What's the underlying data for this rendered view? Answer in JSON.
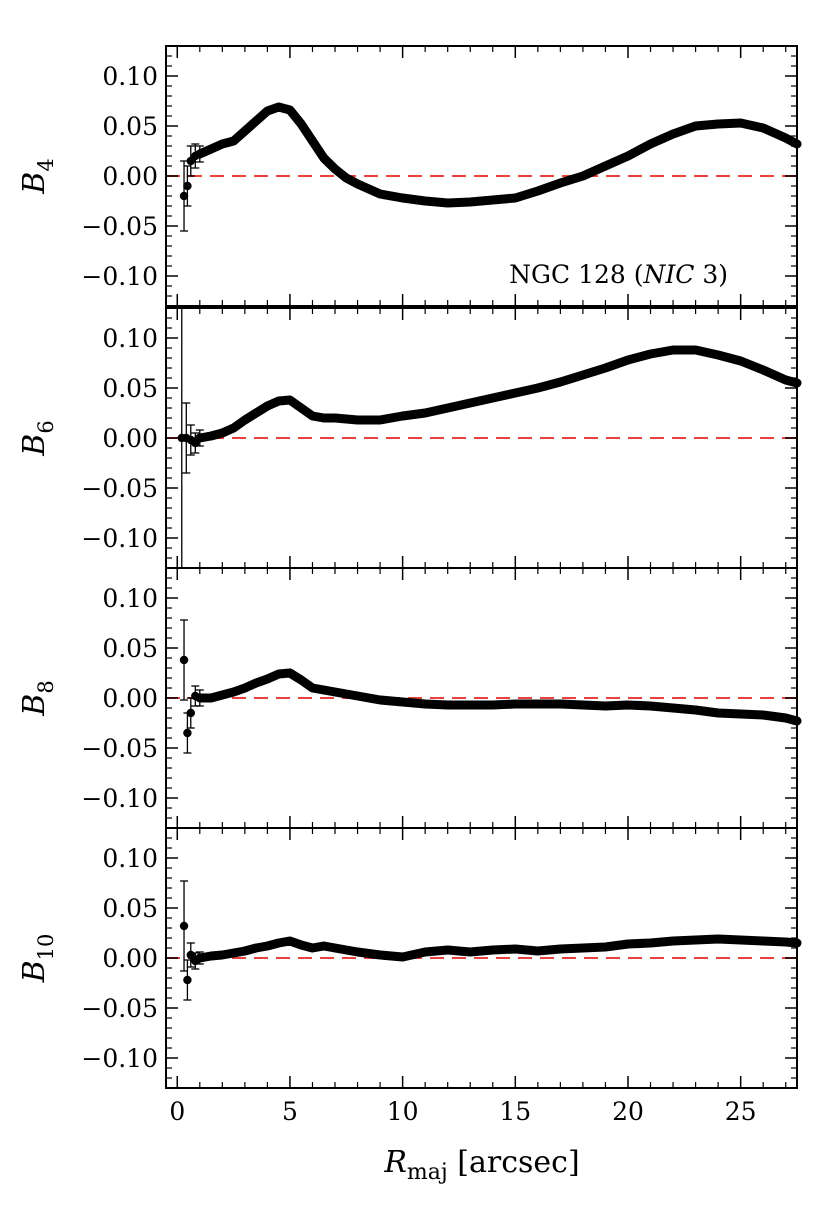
{
  "chart_data": {
    "type": "scatter",
    "annotation": "NGC 128 (NIC 3)",
    "xlabel": {
      "main": "R",
      "sub": "maj",
      "rest": " [arcsec]"
    },
    "xlim": [
      -0.5,
      27.5
    ],
    "x_ticks": [
      0,
      5,
      10,
      15,
      20,
      25
    ],
    "x_tick_labels": [
      "0",
      "5",
      "10",
      "15",
      "20",
      "25"
    ],
    "y_ticks": [
      -0.1,
      -0.05,
      0.0,
      0.05,
      0.1
    ],
    "y_tick_labels": [
      "−0.10",
      "−0.05",
      "0.00",
      "0.05",
      "0.10"
    ],
    "reference_line": {
      "y": 0.0,
      "style": "dashed",
      "color": "#e8423c"
    },
    "marker_color": "#000000",
    "panels": [
      {
        "ylabel": "B",
        "ylabel_sub": "4",
        "ylim": [
          -0.13,
          0.13
        ],
        "errors": [
          {
            "x": 0.3,
            "y": -0.02,
            "err": 0.035
          },
          {
            "x": 0.45,
            "y": -0.01,
            "err": 0.02
          },
          {
            "x": 0.6,
            "y": 0.015,
            "err": 0.015
          },
          {
            "x": 0.8,
            "y": 0.02,
            "err": 0.012
          },
          {
            "x": 1.0,
            "y": 0.022,
            "err": 0.008
          }
        ],
        "points": [
          [
            0.3,
            -0.02
          ],
          [
            0.45,
            -0.01
          ],
          [
            0.6,
            0.015
          ],
          [
            0.8,
            0.02
          ],
          [
            1.0,
            0.022
          ],
          [
            1.5,
            0.027
          ],
          [
            2.0,
            0.032
          ],
          [
            2.5,
            0.035
          ],
          [
            3.0,
            0.045
          ],
          [
            3.5,
            0.055
          ],
          [
            4.0,
            0.065
          ],
          [
            4.5,
            0.069
          ],
          [
            5.0,
            0.066
          ],
          [
            5.5,
            0.052
          ],
          [
            6.0,
            0.035
          ],
          [
            6.5,
            0.018
          ],
          [
            7.0,
            0.007
          ],
          [
            7.5,
            -0.002
          ],
          [
            8.0,
            -0.008
          ],
          [
            9.0,
            -0.018
          ],
          [
            10.0,
            -0.022
          ],
          [
            11.0,
            -0.025
          ],
          [
            12.0,
            -0.027
          ],
          [
            13.0,
            -0.026
          ],
          [
            14.0,
            -0.024
          ],
          [
            15.0,
            -0.022
          ],
          [
            16.0,
            -0.015
          ],
          [
            17.0,
            -0.007
          ],
          [
            18.0,
            0.0
          ],
          [
            19.0,
            0.01
          ],
          [
            20.0,
            0.02
          ],
          [
            21.0,
            0.032
          ],
          [
            22.0,
            0.042
          ],
          [
            23.0,
            0.05
          ],
          [
            24.0,
            0.052
          ],
          [
            25.0,
            0.053
          ],
          [
            26.0,
            0.048
          ],
          [
            27.0,
            0.038
          ],
          [
            27.5,
            0.032
          ]
        ]
      },
      {
        "ylabel": "B",
        "ylabel_sub": "6",
        "ylim": [
          -0.13,
          0.13
        ],
        "errors": [
          {
            "x": 0.2,
            "y": 0.0,
            "err": 0.13
          },
          {
            "x": 0.4,
            "y": 0.0,
            "err": 0.035
          },
          {
            "x": 0.6,
            "y": -0.002,
            "err": 0.015
          },
          {
            "x": 0.8,
            "y": -0.005,
            "err": 0.01
          },
          {
            "x": 1.0,
            "y": 0.0,
            "err": 0.008
          }
        ],
        "points": [
          [
            0.2,
            0.0
          ],
          [
            0.4,
            0.0
          ],
          [
            0.6,
            -0.002
          ],
          [
            0.8,
            -0.005
          ],
          [
            1.0,
            0.0
          ],
          [
            1.5,
            0.002
          ],
          [
            2.0,
            0.005
          ],
          [
            2.5,
            0.01
          ],
          [
            3.0,
            0.018
          ],
          [
            3.5,
            0.025
          ],
          [
            4.0,
            0.032
          ],
          [
            4.5,
            0.037
          ],
          [
            5.0,
            0.038
          ],
          [
            5.5,
            0.03
          ],
          [
            6.0,
            0.022
          ],
          [
            6.5,
            0.02
          ],
          [
            7.0,
            0.02
          ],
          [
            8.0,
            0.018
          ],
          [
            9.0,
            0.018
          ],
          [
            10.0,
            0.022
          ],
          [
            11.0,
            0.025
          ],
          [
            12.0,
            0.03
          ],
          [
            13.0,
            0.035
          ],
          [
            14.0,
            0.04
          ],
          [
            15.0,
            0.045
          ],
          [
            16.0,
            0.05
          ],
          [
            17.0,
            0.056
          ],
          [
            18.0,
            0.063
          ],
          [
            19.0,
            0.07
          ],
          [
            20.0,
            0.078
          ],
          [
            21.0,
            0.084
          ],
          [
            22.0,
            0.088
          ],
          [
            23.0,
            0.088
          ],
          [
            24.0,
            0.083
          ],
          [
            25.0,
            0.077
          ],
          [
            26.0,
            0.068
          ],
          [
            27.0,
            0.058
          ],
          [
            27.5,
            0.055
          ]
        ]
      },
      {
        "ylabel": "B",
        "ylabel_sub": "8",
        "ylim": [
          -0.13,
          0.13
        ],
        "errors": [
          {
            "x": 0.3,
            "y": 0.038,
            "err": 0.04
          },
          {
            "x": 0.45,
            "y": -0.035,
            "err": 0.02
          },
          {
            "x": 0.6,
            "y": -0.015,
            "err": 0.015
          },
          {
            "x": 0.8,
            "y": 0.002,
            "err": 0.01
          },
          {
            "x": 1.0,
            "y": 0.0,
            "err": 0.008
          }
        ],
        "points": [
          [
            0.3,
            0.038
          ],
          [
            0.45,
            -0.035
          ],
          [
            0.6,
            -0.015
          ],
          [
            0.8,
            0.002
          ],
          [
            1.0,
            0.0
          ],
          [
            1.5,
            0.0
          ],
          [
            2.0,
            0.003
          ],
          [
            2.5,
            0.006
          ],
          [
            3.0,
            0.01
          ],
          [
            3.5,
            0.015
          ],
          [
            4.0,
            0.019
          ],
          [
            4.5,
            0.024
          ],
          [
            5.0,
            0.025
          ],
          [
            5.5,
            0.018
          ],
          [
            6.0,
            0.01
          ],
          [
            6.5,
            0.008
          ],
          [
            7.0,
            0.006
          ],
          [
            8.0,
            0.002
          ],
          [
            9.0,
            -0.002
          ],
          [
            10.0,
            -0.004
          ],
          [
            11.0,
            -0.006
          ],
          [
            12.0,
            -0.007
          ],
          [
            13.0,
            -0.007
          ],
          [
            14.0,
            -0.007
          ],
          [
            15.0,
            -0.006
          ],
          [
            16.0,
            -0.006
          ],
          [
            17.0,
            -0.006
          ],
          [
            18.0,
            -0.007
          ],
          [
            19.0,
            -0.008
          ],
          [
            20.0,
            -0.007
          ],
          [
            21.0,
            -0.008
          ],
          [
            22.0,
            -0.01
          ],
          [
            23.0,
            -0.012
          ],
          [
            24.0,
            -0.015
          ],
          [
            25.0,
            -0.016
          ],
          [
            26.0,
            -0.017
          ],
          [
            27.0,
            -0.02
          ],
          [
            27.5,
            -0.023
          ]
        ]
      },
      {
        "ylabel": "B",
        "ylabel_sub": "10",
        "ylim": [
          -0.13,
          0.13
        ],
        "errors": [
          {
            "x": 0.3,
            "y": 0.032,
            "err": 0.045
          },
          {
            "x": 0.45,
            "y": -0.022,
            "err": 0.02
          },
          {
            "x": 0.6,
            "y": 0.003,
            "err": 0.012
          },
          {
            "x": 0.8,
            "y": -0.003,
            "err": 0.008
          },
          {
            "x": 1.0,
            "y": 0.0,
            "err": 0.006
          }
        ],
        "points": [
          [
            0.3,
            0.032
          ],
          [
            0.45,
            -0.022
          ],
          [
            0.6,
            0.003
          ],
          [
            0.8,
            -0.003
          ],
          [
            1.0,
            0.0
          ],
          [
            1.5,
            0.002
          ],
          [
            2.0,
            0.003
          ],
          [
            2.5,
            0.005
          ],
          [
            3.0,
            0.007
          ],
          [
            3.5,
            0.01
          ],
          [
            4.0,
            0.012
          ],
          [
            4.5,
            0.015
          ],
          [
            5.0,
            0.017
          ],
          [
            5.5,
            0.013
          ],
          [
            6.0,
            0.01
          ],
          [
            6.5,
            0.012
          ],
          [
            7.0,
            0.01
          ],
          [
            8.0,
            0.006
          ],
          [
            9.0,
            0.003
          ],
          [
            10.0,
            0.001
          ],
          [
            11.0,
            0.006
          ],
          [
            12.0,
            0.008
          ],
          [
            13.0,
            0.006
          ],
          [
            14.0,
            0.008
          ],
          [
            15.0,
            0.009
          ],
          [
            16.0,
            0.007
          ],
          [
            17.0,
            0.009
          ],
          [
            18.0,
            0.01
          ],
          [
            19.0,
            0.011
          ],
          [
            20.0,
            0.014
          ],
          [
            21.0,
            0.015
          ],
          [
            22.0,
            0.017
          ],
          [
            23.0,
            0.018
          ],
          [
            24.0,
            0.019
          ],
          [
            25.0,
            0.018
          ],
          [
            26.0,
            0.017
          ],
          [
            27.0,
            0.016
          ],
          [
            27.5,
            0.015
          ]
        ]
      }
    ]
  }
}
